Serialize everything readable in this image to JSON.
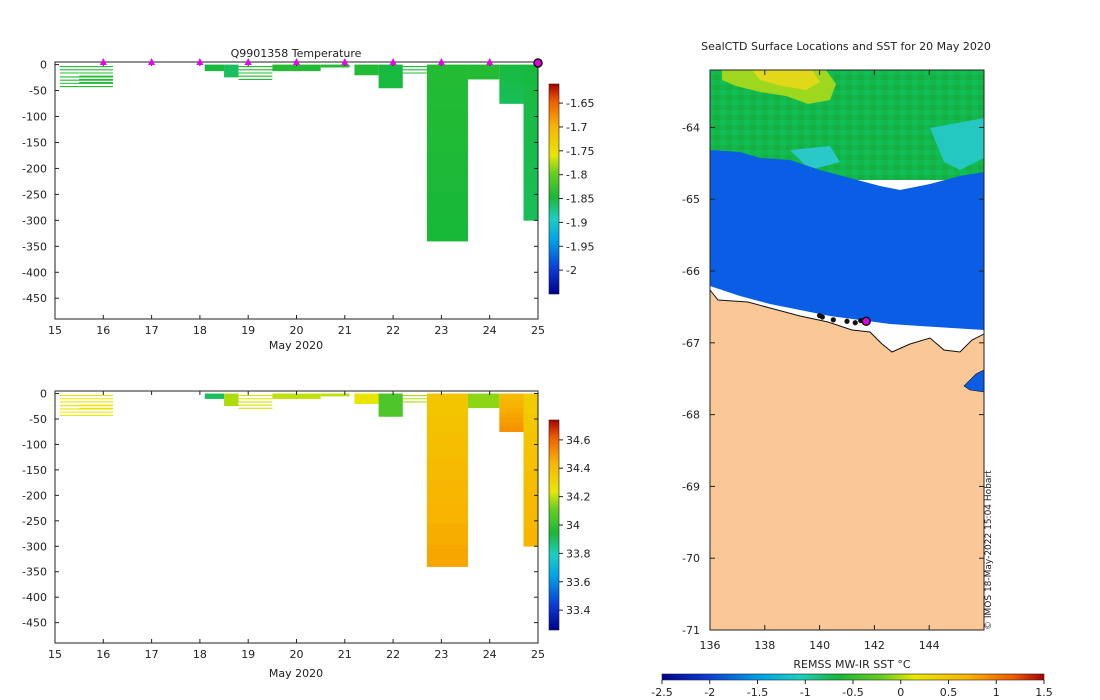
{
  "chart_data": [
    {
      "type": "heatmap",
      "title": "Q9901358  Temperature",
      "xlabel": "May 2020",
      "ylabel": "",
      "x_ticks": [
        "15",
        "16",
        "17",
        "18",
        "19",
        "20",
        "21",
        "22",
        "23",
        "24",
        "25"
      ],
      "y_ticks": [
        "0",
        "-50",
        "-100",
        "-150",
        "-200",
        "-250",
        "-300",
        "-350",
        "-400",
        "-450"
      ],
      "xlim": [
        15,
        25
      ],
      "ylim": [
        -490,
        5
      ],
      "colorbar": {
        "min": -2.05,
        "max": -1.61,
        "ticks": [
          "-1.65",
          "-1.7",
          "-1.75",
          "-1.8",
          "-1.85",
          "-1.9",
          "-1.95",
          "-2"
        ]
      },
      "surface_markers_day": [
        16,
        17,
        18,
        19,
        20,
        21,
        22,
        23,
        24
      ],
      "current_marker_day": 25,
      "profiles": [
        {
          "x0": 15.1,
          "x1": 15.5,
          "d0": 0,
          "d1": 20,
          "value": -1.84,
          "style": "lines"
        },
        {
          "x0": 15.1,
          "x1": 16.2,
          "d0": 20,
          "d1": 47,
          "value": -1.84,
          "style": "lines"
        },
        {
          "x0": 15.5,
          "x1": 16.2,
          "d0": 0,
          "d1": 35,
          "value": -1.84,
          "style": "lines"
        },
        {
          "x0": 18.1,
          "x1": 18.5,
          "d0": 0,
          "d1": 12,
          "value": -1.85
        },
        {
          "x0": 18.5,
          "x1": 18.8,
          "d0": 0,
          "d1": 24,
          "value": -1.86
        },
        {
          "x0": 18.8,
          "x1": 19.5,
          "d0": 0,
          "d1": 30,
          "value": -1.84,
          "style": "lines"
        },
        {
          "x0": 19.5,
          "x1": 20.5,
          "d0": 0,
          "d1": 12,
          "value": -1.84
        },
        {
          "x0": 20.5,
          "x1": 21.1,
          "d0": 0,
          "d1": 5,
          "value": -1.84
        },
        {
          "x0": 21.2,
          "x1": 21.7,
          "d0": 0,
          "d1": 20,
          "value": -1.84
        },
        {
          "x0": 21.7,
          "x1": 22.2,
          "d0": 0,
          "d1": 45,
          "value": -1.85
        },
        {
          "x0": 22.2,
          "x1": 22.7,
          "d0": 0,
          "d1": 18,
          "value": -1.84,
          "style": "lines"
        },
        {
          "x0": 22.7,
          "x1": 23.55,
          "d0": 0,
          "d1": 340,
          "value": -1.84
        },
        {
          "x0": 23.55,
          "x1": 24.2,
          "d0": 0,
          "d1": 28,
          "value": -1.84
        },
        {
          "x0": 24.2,
          "x1": 24.7,
          "d0": 0,
          "d1": 75,
          "value": -1.85
        },
        {
          "x0": 24.7,
          "x1": 25.0,
          "d0": 0,
          "d1": 300,
          "value": -1.85
        }
      ]
    },
    {
      "type": "heatmap",
      "title": "",
      "xlabel": "May 2020",
      "ylabel": "",
      "x_ticks": [
        "15",
        "16",
        "17",
        "18",
        "19",
        "20",
        "21",
        "22",
        "23",
        "24",
        "25"
      ],
      "y_ticks": [
        "0",
        "-50",
        "-100",
        "-150",
        "-200",
        "-250",
        "-300",
        "-350",
        "-400",
        "-450"
      ],
      "xlim": [
        15,
        25
      ],
      "ylim": [
        -490,
        5
      ],
      "colorbar": {
        "min": 33.26,
        "max": 34.74,
        "ticks": [
          "34.6",
          "34.4",
          "34.2",
          "34",
          "33.8",
          "33.6",
          "33.4"
        ]
      },
      "profiles": [
        {
          "x0": 15.1,
          "x1": 15.5,
          "d0": 0,
          "d1": 20,
          "value": 34.25,
          "style": "lines"
        },
        {
          "x0": 15.1,
          "x1": 16.2,
          "d0": 20,
          "d1": 47,
          "value": 34.25,
          "style": "lines"
        },
        {
          "x0": 15.5,
          "x1": 16.2,
          "d0": 0,
          "d1": 35,
          "value": 34.25,
          "style": "lines"
        },
        {
          "x0": 18.1,
          "x1": 18.5,
          "d0": 0,
          "d1": 10,
          "value": 33.9
        },
        {
          "x0": 18.5,
          "x1": 18.8,
          "d0": 0,
          "d1": 24,
          "value": 34.18
        },
        {
          "x0": 18.8,
          "x1": 19.5,
          "d0": 0,
          "d1": 30,
          "value": 34.22,
          "style": "lines"
        },
        {
          "x0": 19.5,
          "x1": 20.5,
          "d0": 0,
          "d1": 10,
          "value": 34.2
        },
        {
          "x0": 20.5,
          "x1": 21.1,
          "d0": 0,
          "d1": 5,
          "value": 34.2
        },
        {
          "x0": 21.2,
          "x1": 21.7,
          "d0": 0,
          "d1": 20,
          "value": 34.25
        },
        {
          "x0": 21.7,
          "x1": 22.2,
          "d0": 0,
          "d1": 45,
          "value": 34.05
        },
        {
          "x0": 22.2,
          "x1": 22.7,
          "d0": 0,
          "d1": 18,
          "value": 34.18,
          "style": "lines"
        },
        {
          "x0": 22.7,
          "x1": 23.55,
          "d0": 0,
          "d1": 340,
          "value": 34.38
        },
        {
          "x0": 23.55,
          "x1": 24.2,
          "d0": 0,
          "d1": 28,
          "value": 34.15
        },
        {
          "x0": 24.2,
          "x1": 24.7,
          "d0": 0,
          "d1": 75,
          "value": 34.42
        },
        {
          "x0": 24.7,
          "x1": 25.0,
          "d0": 0,
          "d1": 300,
          "value": 34.35
        }
      ]
    },
    {
      "type": "heatmap",
      "title": "SealCTD Surface Locations and SST for 20 May 2020",
      "xlabel": "",
      "ylabel": "",
      "x_ticks": [
        "136",
        "138",
        "140",
        "142",
        "144"
      ],
      "y_ticks": [
        "-64",
        "-65",
        "-66",
        "-67",
        "-68",
        "-69",
        "-70",
        "-71"
      ],
      "xlim": [
        136,
        146
      ],
      "ylim": [
        -71,
        -63.2
      ],
      "colorbar": {
        "label": "REMSS MW-IR SST °C",
        "min": -2.5,
        "max": 1.5,
        "ticks": [
          "-2.5",
          "-2",
          "-1.5",
          "-1",
          "-0.5",
          "0",
          "0.5",
          "1",
          "1.5"
        ]
      },
      "sst_regions": [
        {
          "region": "open ocean north of -64.2",
          "value": -0.55
        },
        {
          "region": "warm patch near 136.5-140.2, -63.4",
          "value": 0.15
        },
        {
          "region": "cold band -64.2 to coast",
          "value": -1.9
        },
        {
          "region": "Antarctic continent",
          "value": "land"
        }
      ],
      "seal_tracks": [
        {
          "lon": 140.0,
          "lat": -66.62
        },
        {
          "lon": 140.1,
          "lat": -66.64
        },
        {
          "lon": 140.5,
          "lat": -66.68
        },
        {
          "lon": 141.0,
          "lat": -66.7
        },
        {
          "lon": 141.3,
          "lat": -66.72
        },
        {
          "lon": 141.5,
          "lat": -66.69
        }
      ],
      "current_position": {
        "lon": 141.7,
        "lat": -66.7
      }
    }
  ],
  "credit": "© IMOS 18-May-2022 15:04 Hobart"
}
